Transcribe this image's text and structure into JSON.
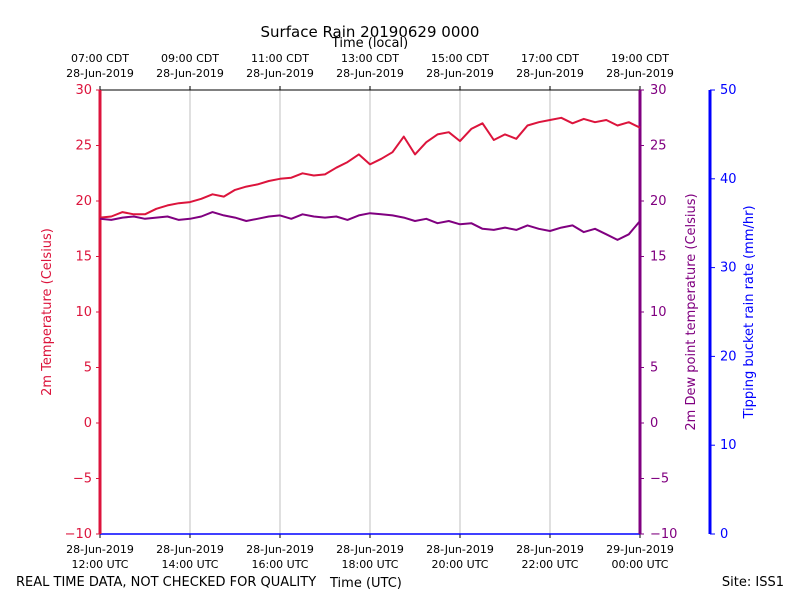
{
  "chart_data": {
    "type": "line",
    "title": "Surface Rain 20190629 0000",
    "top_axis_label": "Time (local)",
    "xlabel": "Time (UTC)",
    "ylabel_left": "2m Temperature (Celsius)",
    "ylabel_right_inner": "2m Dew point temperature (Celsius)",
    "ylabel_right_outer": "Tipping bucket rain rate (mm/hr)",
    "ylim": [
      -10,
      30
    ],
    "rain_ylim": [
      0,
      50
    ],
    "x_range_hours_utc": [
      12,
      24
    ],
    "grid": "vertical",
    "left_ticks": [
      "30",
      "25",
      "20",
      "15",
      "10",
      "5",
      "0",
      "−5",
      "−10"
    ],
    "right_ticks": [
      "30",
      "25",
      "20",
      "15",
      "10",
      "5",
      "0",
      "−5",
      "−10"
    ],
    "rain_ticks": [
      "50",
      "40",
      "30",
      "20",
      "10",
      "0"
    ],
    "x_ticks_bottom": [
      [
        "28-Jun-2019",
        "12:00 UTC"
      ],
      [
        "28-Jun-2019",
        "14:00 UTC"
      ],
      [
        "28-Jun-2019",
        "16:00 UTC"
      ],
      [
        "28-Jun-2019",
        "18:00 UTC"
      ],
      [
        "28-Jun-2019",
        "20:00 UTC"
      ],
      [
        "28-Jun-2019",
        "22:00 UTC"
      ],
      [
        "29-Jun-2019",
        "00:00 UTC"
      ]
    ],
    "x_ticks_top": [
      [
        "07:00 CDT",
        "28-Jun-2019"
      ],
      [
        "09:00 CDT",
        "28-Jun-2019"
      ],
      [
        "11:00 CDT",
        "28-Jun-2019"
      ],
      [
        "13:00 CDT",
        "28-Jun-2019"
      ],
      [
        "15:00 CDT",
        "28-Jun-2019"
      ],
      [
        "17:00 CDT",
        "28-Jun-2019"
      ],
      [
        "19:00 CDT",
        "28-Jun-2019"
      ]
    ],
    "series": [
      {
        "name": "2m Temperature (Celsius)",
        "color": "#dc143c",
        "x": [
          12.0,
          12.25,
          12.5,
          12.75,
          13.0,
          13.25,
          13.5,
          13.75,
          14.0,
          14.25,
          14.5,
          14.75,
          15.0,
          15.25,
          15.5,
          15.75,
          16.0,
          16.25,
          16.5,
          16.75,
          17.0,
          17.25,
          17.5,
          17.75,
          18.0,
          18.25,
          18.5,
          18.75,
          19.0,
          19.25,
          19.5,
          19.75,
          20.0,
          20.25,
          20.5,
          20.75,
          21.0,
          21.25,
          21.5,
          21.75,
          22.0,
          22.25,
          22.5,
          22.75,
          23.0,
          23.25,
          23.5,
          23.75,
          24.0
        ],
        "y": [
          18.5,
          18.6,
          19.0,
          18.8,
          18.8,
          19.3,
          19.6,
          19.8,
          19.9,
          20.2,
          20.6,
          20.4,
          21.0,
          21.3,
          21.5,
          21.8,
          22.0,
          22.1,
          22.5,
          22.3,
          22.4,
          23.0,
          23.5,
          24.2,
          23.3,
          23.8,
          24.4,
          25.8,
          24.2,
          25.3,
          26.0,
          26.2,
          25.4,
          26.5,
          27.0,
          25.5,
          26.0,
          25.6,
          26.8,
          27.1,
          27.3,
          27.5,
          27.0,
          27.4,
          27.1,
          27.3,
          26.8,
          27.1,
          26.6
        ]
      },
      {
        "name": "2m Dew point temperature (Celsius)",
        "color": "#800080",
        "x": [
          12.0,
          12.25,
          12.5,
          12.75,
          13.0,
          13.25,
          13.5,
          13.75,
          14.0,
          14.25,
          14.5,
          14.75,
          15.0,
          15.25,
          15.5,
          15.75,
          16.0,
          16.25,
          16.5,
          16.75,
          17.0,
          17.25,
          17.5,
          17.75,
          18.0,
          18.25,
          18.5,
          18.75,
          19.0,
          19.25,
          19.5,
          19.75,
          20.0,
          20.25,
          20.5,
          20.75,
          21.0,
          21.25,
          21.5,
          21.75,
          22.0,
          22.25,
          22.5,
          22.75,
          23.0,
          23.25,
          23.5,
          23.75,
          24.0
        ],
        "y": [
          18.4,
          18.3,
          18.5,
          18.6,
          18.4,
          18.5,
          18.6,
          18.3,
          18.4,
          18.6,
          19.0,
          18.7,
          18.5,
          18.2,
          18.4,
          18.6,
          18.7,
          18.4,
          18.8,
          18.6,
          18.5,
          18.6,
          18.3,
          18.7,
          18.9,
          18.8,
          18.7,
          18.5,
          18.2,
          18.4,
          18.0,
          18.2,
          17.9,
          18.0,
          17.5,
          17.4,
          17.6,
          17.4,
          17.8,
          17.5,
          17.3,
          17.6,
          17.8,
          17.2,
          17.5,
          17.0,
          16.5,
          17.0,
          18.2
        ]
      }
    ]
  },
  "footer": {
    "disclaimer": "REAL TIME DATA, NOT CHECKED FOR QUALITY",
    "site": "Site: ISS1"
  }
}
